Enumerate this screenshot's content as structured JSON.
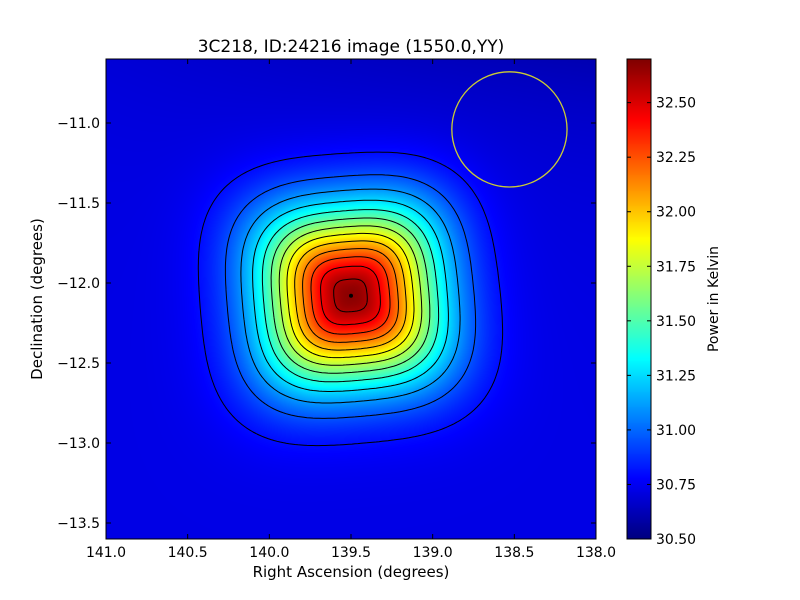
{
  "chart_data": {
    "type": "heatmap",
    "title": "3C218, ID:24216 image (1550.0,YY)",
    "xlabel": "Right Ascension (degrees)",
    "ylabel": "Declination (degrees)",
    "colorbar_label": "Power in Kelvin",
    "xlim": [
      141.0,
      138.0
    ],
    "ylim": [
      -13.6,
      -10.6
    ],
    "x_inverted": true,
    "xticks": [
      141.0,
      140.5,
      140.0,
      139.5,
      139.0,
      138.5,
      138.0
    ],
    "xtick_labels": [
      "141.0",
      "140.5",
      "140.0",
      "139.5",
      "139.0",
      "138.5",
      "138.0"
    ],
    "yticks": [
      -11.0,
      -11.5,
      -12.0,
      -12.5,
      -13.0,
      -13.5
    ],
    "ytick_labels": [
      "−11.0",
      "−11.5",
      "−12.0",
      "−12.5",
      "−13.0",
      "−13.5"
    ],
    "colorbar_range": [
      30.5,
      32.7
    ],
    "colorbar_ticks": [
      30.5,
      30.75,
      31.0,
      31.25,
      31.5,
      31.75,
      32.0,
      32.25,
      32.5
    ],
    "colorbar_tick_labels": [
      "30.50",
      "30.75",
      "31.00",
      "31.25",
      "31.50",
      "31.75",
      "32.00",
      "32.25",
      "32.50"
    ],
    "colormap": "jet",
    "source_peak": {
      "ra": 139.5,
      "dec": -12.08,
      "value": 32.68
    },
    "source_width_deg": 0.55,
    "background_value": 30.72,
    "contour_levels": [
      30.8,
      30.95,
      31.1,
      31.25,
      31.4,
      31.55,
      31.7,
      31.85,
      32.0,
      32.15,
      32.3,
      32.45,
      32.6
    ],
    "contour_color": "#000000",
    "beam_circle": {
      "ra": 138.53,
      "dec": -11.04,
      "radius_deg": 0.36,
      "color": "#cccc33"
    },
    "grid": false
  }
}
